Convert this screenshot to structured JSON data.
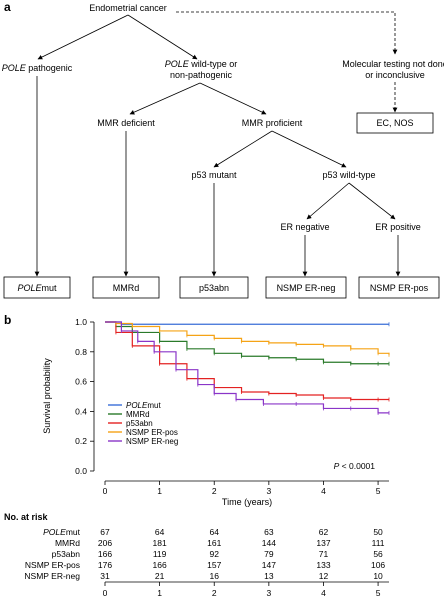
{
  "panel_a": {
    "label": "a",
    "nodes": {
      "root": "Endometrial cancer",
      "pole_pathogenic": "pathogenic",
      "pole_wild_line1": "wild-type or",
      "pole_wild_line2": "non-pathogenic",
      "pole_word": "POLE",
      "mmr_deficient": "MMR deficient",
      "mmr_proficient": "MMR proficient",
      "p53_mutant": "p53 mutant",
      "p53_wild": "p53 wild-type",
      "er_negative": "ER negative",
      "er_positive": "ER positive",
      "molecular_line1": "Molecular testing not done",
      "molecular_line2": "or inconclusive",
      "ec_nos": "EC, NOS"
    },
    "boxes": {
      "polemut_italic": "POLE",
      "polemut_suffix": "mut",
      "mmrd": "MMRd",
      "p53abn": "p53abn",
      "nsmp_neg": "NSMP ER-neg",
      "nsmp_pos": "NSMP ER-pos"
    }
  },
  "panel_b": {
    "label": "b",
    "pvalue_prefix": "P",
    "pvalue_rest": " < 0.0001",
    "risk_title": "No. at risk"
  },
  "colors": {
    "POLEmut": "#3a6fd8",
    "MMRd": "#2a7a2a",
    "p53abn": "#e32222",
    "NSMP ER-pos": "#f5a316",
    "NSMP ER-neg": "#8a35c8"
  },
  "chart_data": {
    "type": "line",
    "title": "",
    "xlabel": "Time (years)",
    "ylabel": "Survival probability",
    "xlim": [
      0,
      5.2
    ],
    "ylim": [
      0,
      1.0
    ],
    "xticks": [
      "0",
      "1",
      "2",
      "3",
      "4",
      "5"
    ],
    "yticks": [
      "0.0",
      "0.2",
      "0.4",
      "0.6",
      "0.8",
      "1.0"
    ],
    "legend_position": "bottom-left",
    "series": [
      {
        "name": "POLEmut",
        "name_italic": "POLE",
        "name_suffix": "mut",
        "color": "#3a6fd8",
        "x": [
          0,
          0.3,
          5.2
        ],
        "y": [
          1.0,
          0.985,
          0.985
        ]
      },
      {
        "name": "MMRd",
        "name_italic": "",
        "name_suffix": "MMRd",
        "color": "#2a7a2a",
        "x": [
          0,
          0.2,
          0.5,
          1.0,
          1.5,
          2.0,
          2.5,
          3.0,
          3.5,
          4.0,
          4.5,
          5.0,
          5.2
        ],
        "y": [
          1.0,
          0.97,
          0.93,
          0.87,
          0.82,
          0.79,
          0.77,
          0.76,
          0.75,
          0.73,
          0.72,
          0.72,
          0.72
        ]
      },
      {
        "name": "p53abn",
        "name_italic": "",
        "name_suffix": "p53abn",
        "color": "#e32222",
        "x": [
          0,
          0.2,
          0.5,
          1.0,
          1.5,
          2.0,
          2.5,
          3.0,
          3.5,
          4.0,
          4.5,
          5.0,
          5.2
        ],
        "y": [
          1.0,
          0.93,
          0.84,
          0.72,
          0.62,
          0.56,
          0.53,
          0.52,
          0.51,
          0.49,
          0.48,
          0.48,
          0.48
        ]
      },
      {
        "name": "NSMP ER-pos",
        "name_italic": "",
        "name_suffix": "NSMP ER-pos",
        "color": "#f5a316",
        "x": [
          0,
          0.2,
          0.5,
          1.0,
          1.5,
          2.0,
          2.5,
          3.0,
          3.5,
          4.0,
          4.5,
          5.0,
          5.2
        ],
        "y": [
          1.0,
          0.99,
          0.97,
          0.94,
          0.91,
          0.89,
          0.87,
          0.86,
          0.85,
          0.84,
          0.82,
          0.79,
          0.78
        ]
      },
      {
        "name": "NSMP ER-neg",
        "name_italic": "",
        "name_suffix": "NSMP ER-neg",
        "color": "#8a35c8",
        "x": [
          0,
          0.3,
          0.6,
          0.9,
          1.3,
          1.7,
          2.0,
          2.4,
          2.9,
          3.5,
          4.0,
          4.5,
          5.0,
          5.2
        ],
        "y": [
          1.0,
          0.94,
          0.87,
          0.8,
          0.68,
          0.58,
          0.52,
          0.48,
          0.45,
          0.45,
          0.42,
          0.42,
          0.39,
          0.39
        ]
      }
    ],
    "risk_table": {
      "times": [
        "0",
        "1",
        "2",
        "3",
        "4",
        "5"
      ],
      "rows": [
        {
          "label": "POLEmut",
          "label_italic": "POLE",
          "label_suffix": "mut",
          "values": [
            "67",
            "64",
            "64",
            "63",
            "62",
            "50"
          ]
        },
        {
          "label": "MMRd",
          "label_italic": "",
          "label_suffix": "MMRd",
          "values": [
            "206",
            "181",
            "161",
            "144",
            "137",
            "111"
          ]
        },
        {
          "label": "p53abn",
          "label_italic": "",
          "label_suffix": "p53abn",
          "values": [
            "166",
            "119",
            "92",
            "79",
            "71",
            "56"
          ]
        },
        {
          "label": "NSMP ER-pos",
          "label_italic": "",
          "label_suffix": "NSMP ER-pos",
          "values": [
            "176",
            "166",
            "157",
            "147",
            "133",
            "106"
          ]
        },
        {
          "label": "NSMP ER-neg",
          "label_italic": "",
          "label_suffix": "NSMP ER-neg",
          "values": [
            "31",
            "21",
            "16",
            "13",
            "12",
            "10"
          ]
        }
      ]
    }
  }
}
